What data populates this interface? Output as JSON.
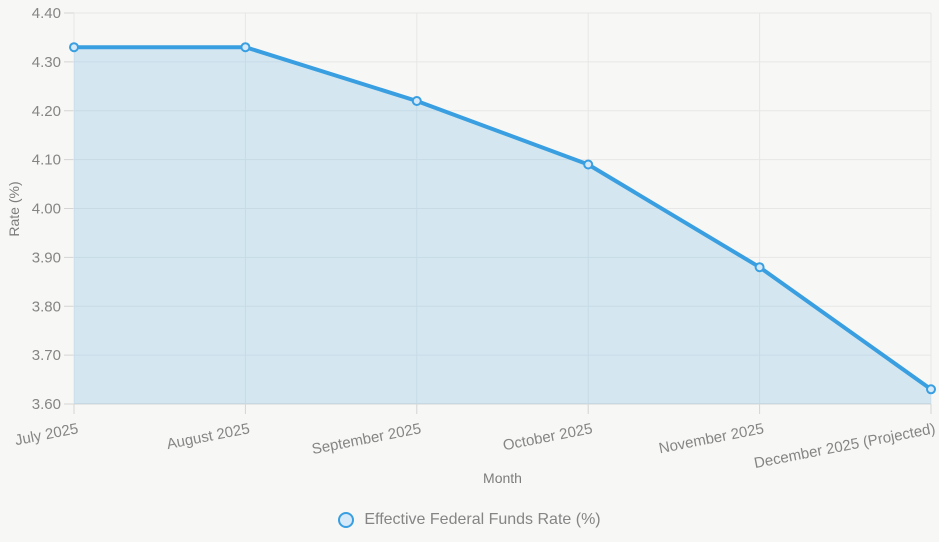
{
  "chart_data": {
    "type": "area",
    "title": "",
    "categories": [
      "July 2025",
      "August 2025",
      "September 2025",
      "October 2025",
      "November 2025",
      "December 2025 (Projected)"
    ],
    "series": [
      {
        "name": "Effective Federal Funds Rate (%)",
        "values": [
          4.33,
          4.33,
          4.22,
          4.09,
          3.88,
          3.63
        ]
      }
    ],
    "xlabel": "Month",
    "ylabel": "Rate (%)",
    "ylim": [
      3.6,
      4.4
    ],
    "ytick_step": 0.1,
    "ytick_decimals": 2,
    "grid": true,
    "legend_position": "bottom",
    "point_style": "circle",
    "x_label_rotation_deg": -11,
    "colors": {
      "line": "#399fe1",
      "area_fill": "rgba(54,160,226,0.18)",
      "point_fill": "#d6e9f8",
      "gridline": "#e7e7e7",
      "axis_line": "#d4d4d4",
      "tick_mark": "#d4d4d4",
      "tick_text": "#858585",
      "axis_title_text": "#7d7d7d",
      "background": "#f7f7f5"
    }
  }
}
